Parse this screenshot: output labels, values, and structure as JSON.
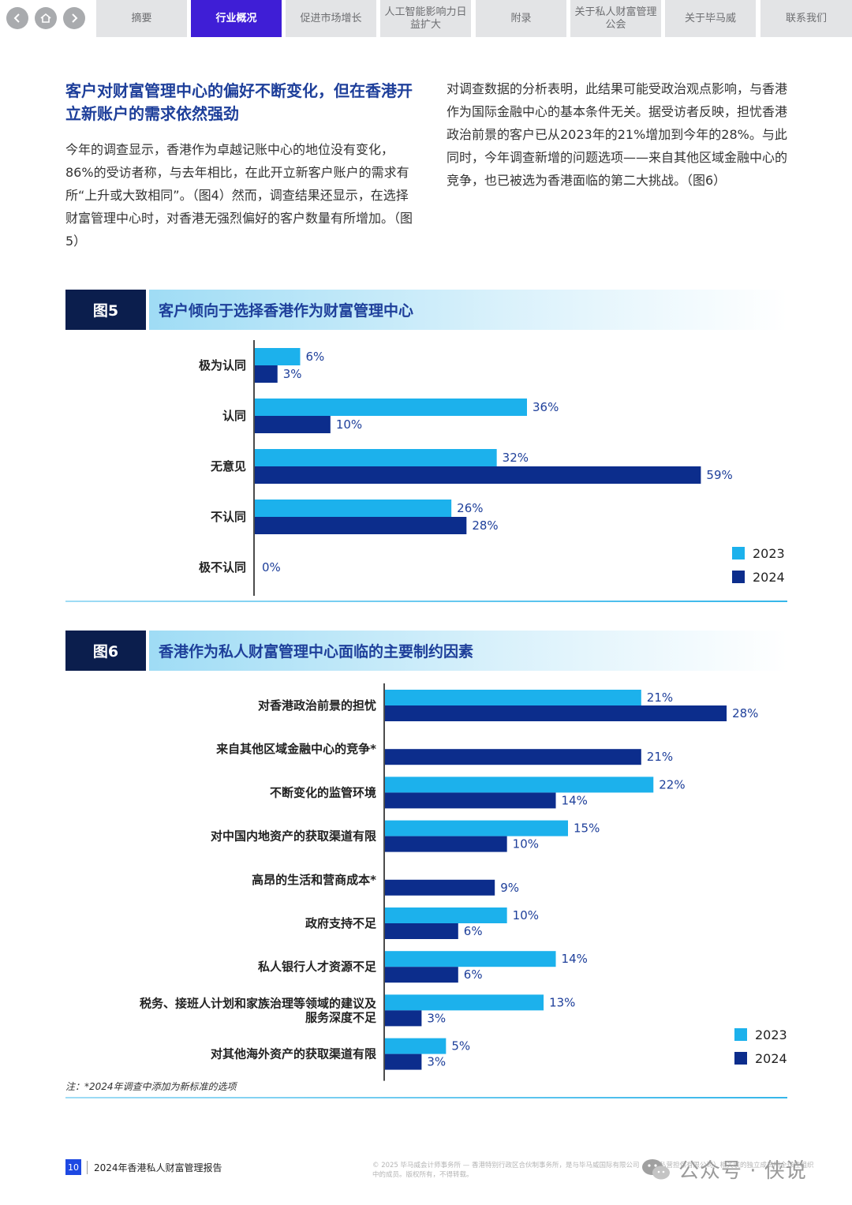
{
  "nav": {
    "back_icon": "chevron-left-icon",
    "home_icon": "home-icon",
    "forward_icon": "chevron-right-icon",
    "tabs": [
      {
        "label": "摘要",
        "active": false
      },
      {
        "label": "行业概况",
        "active": true
      },
      {
        "label": "促进市场增长",
        "active": false
      },
      {
        "label": "人工智能影响力日益扩大",
        "active": false
      },
      {
        "label": "附录",
        "active": false
      },
      {
        "label": "关于私人财富管理公会",
        "active": false
      },
      {
        "label": "关于毕马威",
        "active": false
      },
      {
        "label": "联系我们",
        "active": false
      }
    ]
  },
  "article": {
    "heading": "客户对财富管理中心的偏好不断变化，但在香港开立新账户的需求依然强劲",
    "left_paragraph": "今年的调查显示，香港作为卓越记账中心的地位没有变化，86%的受访者称，与去年相比，在此开立新客户账户的需求有所“上升或大致相同”。（图4）然而，调查结果还显示，在选择财富管理中心时，对香港无强烈偏好的客户数量有所增加。（图5）",
    "right_paragraph": "对调查数据的分析表明，此结果可能受政治观点影响，与香港作为国际金融中心的基本条件无关。据受访者反映，担忧香港政治前景的客户已从2023年的21%增加到今年的28%。与此同时，今年调查新增的问题选项——来自其他区域金融中心的竞争，也已被选为香港面临的第二大挑战。（图6）"
  },
  "figure5": {
    "tag": "图5",
    "title": "客户倾向于选择香港作为财富管理中心"
  },
  "figure6": {
    "tag": "图6",
    "title": "香港作为私人财富管理中心面临的主要制约因素"
  },
  "note": "注：*2024年调查中添加为新标准的选项",
  "footer": {
    "page_number": "10",
    "report_title": "2024年香港私人财富管理报告",
    "copyright": "© 2025 毕马威会计师事务所 — 香港特别行政区合伙制事务所，是与毕马威国际有限公司（英国私营担保有限公司）相关联的独立成员所全球性组织中的成员。版权所有，不得转载。",
    "watermark": "公众号 · 侠说"
  },
  "colors": {
    "s2023": "#1cb1ec",
    "s2024": "#0c2d8c",
    "nav_active": "#3f1ed6",
    "heading": "#1e3f9a",
    "fig_tag": "#0b1e4d"
  },
  "chart_data": [
    {
      "type": "bar",
      "orientation": "horizontal",
      "categories": [
        "极为认同",
        "认同",
        "无意见",
        "不认同",
        "极不认同"
      ],
      "series": [
        {
          "name": "2023",
          "values": [
            6,
            36,
            32,
            26,
            null
          ]
        },
        {
          "name": "2024",
          "values": [
            3,
            10,
            59,
            28,
            0
          ]
        }
      ],
      "value_suffix": "%",
      "xlim": [
        0,
        60
      ],
      "legend": "bottom-right",
      "grid": false
    },
    {
      "type": "bar",
      "orientation": "horizontal",
      "categories": [
        "对香港政治前景的担忧",
        "来自其他区域金融中心的竞争*",
        "不断变化的监管环境",
        "对中国内地资产的获取渠道有限",
        "高昂的生活和营商成本*",
        "政府支持不足",
        "私人银行人才资源不足",
        "税务、接班人计划和家族治理等领域的建议及服务深度不足",
        "对其他海外资产的获取渠道有限"
      ],
      "category_lines": [
        [
          "对香港政治前景的担忧"
        ],
        [
          "来自其他区域金融中心的竞争*"
        ],
        [
          "不断变化的监管环境"
        ],
        [
          "对中国内地资产的获取渠道有限"
        ],
        [
          "高昂的生活和营商成本*"
        ],
        [
          "政府支持不足"
        ],
        [
          "私人银行人才资源不足"
        ],
        [
          "税务、接班人计划和家族治理等领域的建议及",
          "服务深度不足"
        ],
        [
          "对其他海外资产的获取渠道有限"
        ]
      ],
      "series": [
        {
          "name": "2023",
          "values": [
            21,
            0,
            22,
            15,
            0,
            10,
            14,
            13,
            5
          ]
        },
        {
          "name": "2024",
          "values": [
            28,
            21,
            14,
            10,
            9,
            6,
            6,
            3,
            3
          ]
        }
      ],
      "value_suffix": "%",
      "xlim": [
        0,
        30
      ],
      "legend": "bottom-right",
      "grid": false
    }
  ]
}
